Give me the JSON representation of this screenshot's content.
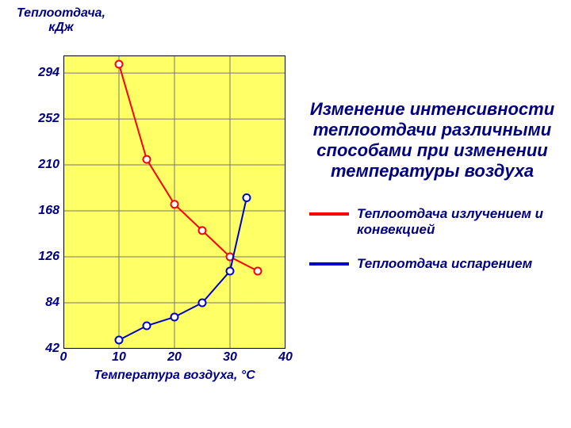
{
  "chart": {
    "type": "line",
    "background_color": "#ffff66",
    "grid_color": "#777777",
    "border_color": "#000000",
    "border_width": 2,
    "grid_width": 1,
    "marker_style": "circle-open",
    "marker_size": 9,
    "marker_stroke": 2,
    "marker_fill": "#ffffff",
    "line_width": 2,
    "y_axis": {
      "title_line1": "Теплоотдача,",
      "title_line2": "кДж",
      "min": 42,
      "max": 294,
      "tick_step": 42,
      "ticks": [
        42,
        84,
        126,
        168,
        210,
        252,
        294
      ]
    },
    "x_axis": {
      "title": "Температура воздуха, °C",
      "min": 0,
      "max": 40,
      "tick_step": 10,
      "ticks": [
        0,
        10,
        20,
        30,
        40
      ]
    },
    "series": [
      {
        "id": "radiation_convection",
        "label": "Теплоотдача излучением и конвекцией",
        "color": "#ff0000",
        "points": [
          {
            "x": 10,
            "y": 302
          },
          {
            "x": 15,
            "y": 215
          },
          {
            "x": 20,
            "y": 174
          },
          {
            "x": 25,
            "y": 150
          },
          {
            "x": 30,
            "y": 126
          },
          {
            "x": 35,
            "y": 113
          }
        ]
      },
      {
        "id": "evaporation",
        "label": "Теплоотдача испарением",
        "color": "#0000cc",
        "points": [
          {
            "x": 10,
            "y": 50
          },
          {
            "x": 15,
            "y": 63
          },
          {
            "x": 20,
            "y": 71
          },
          {
            "x": 25,
            "y": 84
          },
          {
            "x": 30,
            "y": 113
          },
          {
            "x": 33,
            "y": 180
          }
        ]
      }
    ]
  },
  "title": "Изменение интенсивности теплоотдачи различными способами при изменении температуры воздуха",
  "text_color": "#000080",
  "text_fontsize": 16,
  "title_fontsize": 22
}
